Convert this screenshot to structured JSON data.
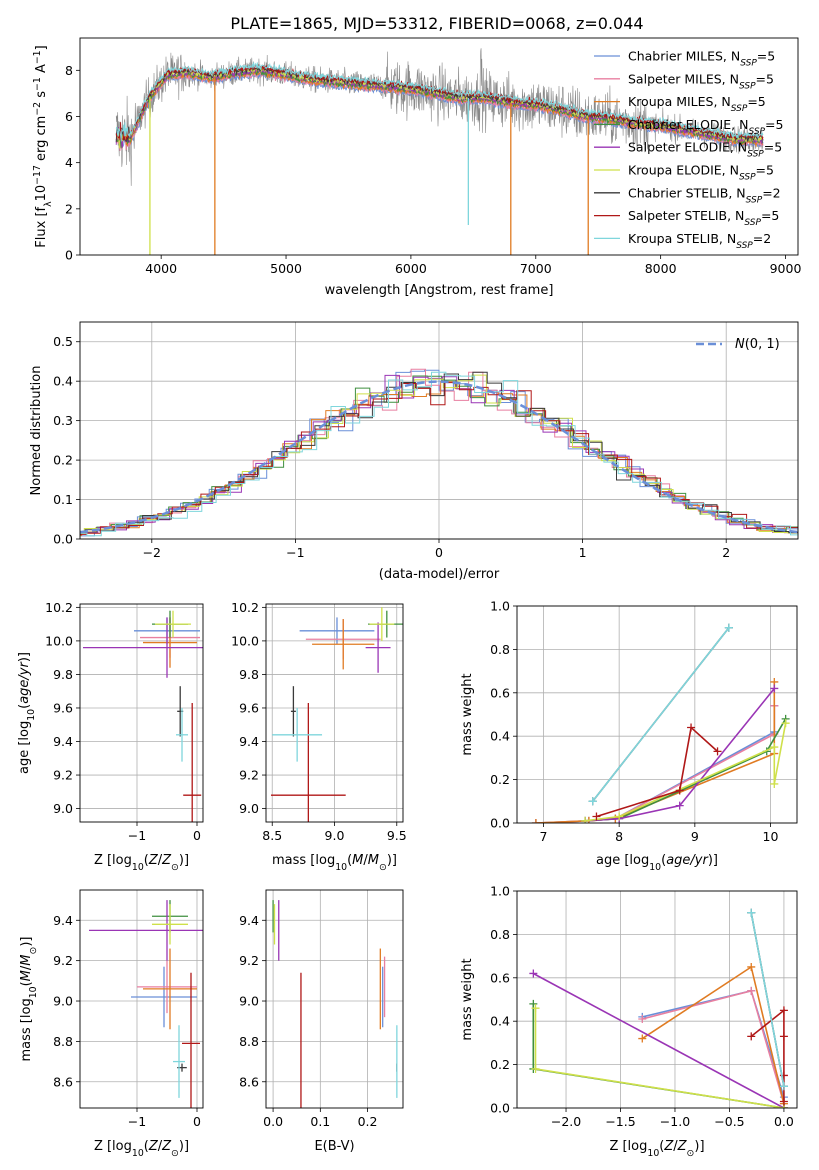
{
  "figure": {
    "title": "PLATE=1865, MJD=53312, FIBERID=0068, z=0.044"
  },
  "models": [
    {
      "name": "Chabrier MILES",
      "nssp": "5",
      "color": "#6a8fd8"
    },
    {
      "name": "Salpeter MILES",
      "nssp": "5",
      "color": "#e87fa0"
    },
    {
      "name": "Kroupa MILES",
      "nssp": "5",
      "color": "#e07b22"
    },
    {
      "name": "Chabrier ELODIE",
      "nssp": "5",
      "color": "#3f8f3f"
    },
    {
      "name": "Salpeter ELODIE",
      "nssp": "5",
      "color": "#9a35b5"
    },
    {
      "name": "Kroupa ELODIE",
      "nssp": "5",
      "color": "#cfe04a"
    },
    {
      "name": "Chabrier STELIB",
      "nssp": "2",
      "color": "#3a3a3a"
    },
    {
      "name": "Salpeter STELIB",
      "nssp": "5",
      "color": "#b01818"
    },
    {
      "name": "Kroupa STELIB",
      "nssp": "2",
      "color": "#7fd6dc"
    }
  ],
  "chart_data": [
    {
      "id": "spectrum",
      "type": "line",
      "xlabel": "wavelength [Angstrom, rest frame]",
      "ylabel": "Flux [f_λ 10^-17 erg cm^-2 s^-1 A^-1]",
      "xlim": [
        3350,
        9100
      ],
      "ylim": [
        0,
        9.4
      ],
      "xticks": [
        4000,
        5000,
        6000,
        7000,
        8000,
        9000
      ],
      "yticks": [
        0,
        2,
        4,
        6,
        8
      ],
      "observed_color": "#888888",
      "continuum": {
        "wavelength": [
          3650,
          3750,
          3900,
          4050,
          4200,
          4400,
          4600,
          4800,
          5000,
          5200,
          5400,
          5600,
          5800,
          6000,
          6200,
          6400,
          6600,
          6800,
          7000,
          7200,
          7400,
          7600,
          7800,
          8000,
          8200,
          8400,
          8600,
          8800
        ],
        "flux": [
          5.2,
          5.0,
          6.8,
          7.8,
          7.9,
          7.7,
          7.9,
          8.0,
          7.8,
          7.6,
          7.5,
          7.4,
          7.3,
          7.2,
          7.0,
          6.8,
          6.8,
          6.6,
          6.5,
          6.3,
          6.0,
          5.9,
          5.7,
          5.6,
          5.4,
          5.2,
          5.0,
          5.0
        ]
      },
      "drops": [
        {
          "model": "Kroupa ELODIE",
          "wavelength": 3910
        },
        {
          "model": "Kroupa MILES",
          "wavelength": 4430
        },
        {
          "model": "Kroupa STELIB",
          "wavelength": 6460
        },
        {
          "model": "Kroupa MILES",
          "wavelength": 6800
        },
        {
          "model": "Kroupa MILES",
          "wavelength": 7420
        }
      ]
    },
    {
      "id": "residuals",
      "type": "histogram",
      "xlabel": "(data-model)/error",
      "ylabel": "Normed distribution",
      "xlim": [
        -2.5,
        2.5
      ],
      "ylim": [
        0,
        0.55
      ],
      "xticks": [
        -2,
        -1,
        0,
        1,
        2
      ],
      "yticks": [
        0.0,
        0.1,
        0.2,
        0.3,
        0.4,
        0.5
      ],
      "bin_width": 0.1,
      "legend": "N(0,1)",
      "gaussian_color": "#6a8fd8"
    },
    {
      "id": "age_vs_Z",
      "type": "errorbar",
      "xlabel": "Z [log10(Z/Z⊙)]",
      "ylabel": "age  [log10(age/yr)]",
      "xlim": [
        -1.95,
        0.1
      ],
      "ylim": [
        8.92,
        10.22
      ],
      "xticks": [
        -1,
        0
      ],
      "yticks": [
        9.0,
        9.2,
        9.4,
        9.6,
        9.8,
        10.0,
        10.2
      ],
      "points": [
        {
          "x": -0.5,
          "y": 10.06,
          "xerr": 0.55,
          "yerr": 0.08
        },
        {
          "x": -0.45,
          "y": 10.02,
          "xerr": 0.5,
          "yerr": 0.12
        },
        {
          "x": -0.45,
          "y": 9.99,
          "xerr": 0.45,
          "yerr": 0.15
        },
        {
          "x": -0.45,
          "y": 10.1,
          "xerr": 0.3,
          "yerr": 0.08
        },
        {
          "x": -0.5,
          "y": 9.96,
          "xerr": 1.4,
          "yerr": 0.18
        },
        {
          "x": -0.4,
          "y": 10.1,
          "xerr": 0.3,
          "yerr": 0.08
        },
        {
          "x": -0.28,
          "y": 9.58,
          "xerr": 0.05,
          "yerr": 0.15
        },
        {
          "x": -0.08,
          "y": 9.08,
          "xerr": 0.15,
          "yerr": 0.55
        },
        {
          "x": -0.25,
          "y": 9.44,
          "xerr": 0.1,
          "yerr": 0.16
        }
      ]
    },
    {
      "id": "age_vs_mass",
      "type": "errorbar",
      "xlabel": "mass [log10(M/M⊙)]",
      "ylabel": "",
      "xlim": [
        8.45,
        9.55
      ],
      "ylim": [
        8.92,
        10.22
      ],
      "xticks": [
        8.5,
        9.0,
        9.5
      ],
      "yticks": [
        9.0,
        9.2,
        9.4,
        9.6,
        9.8,
        10.0,
        10.2
      ],
      "points": [
        {
          "x": 9.02,
          "y": 10.06,
          "xerr": 0.3,
          "yerr": 0.08
        },
        {
          "x": 9.07,
          "y": 10.01,
          "xerr": 0.3,
          "yerr": 0.12
        },
        {
          "x": 9.07,
          "y": 9.98,
          "xerr": 0.25,
          "yerr": 0.15
        },
        {
          "x": 9.42,
          "y": 10.1,
          "xerr": 0.15,
          "yerr": 0.08
        },
        {
          "x": 9.35,
          "y": 9.96,
          "xerr": 0.1,
          "yerr": 0.15
        },
        {
          "x": 9.38,
          "y": 10.1,
          "xerr": 0.1,
          "yerr": 0.1
        },
        {
          "x": 8.67,
          "y": 9.58,
          "xerr": 0.02,
          "yerr": 0.15
        },
        {
          "x": 8.79,
          "y": 9.08,
          "xerr": 0.3,
          "yerr": 0.55
        },
        {
          "x": 8.7,
          "y": 9.44,
          "xerr": 0.2,
          "yerr": 0.16
        }
      ]
    },
    {
      "id": "weight_vs_age",
      "type": "line",
      "xlabel": "age  [log10(age/yr)]",
      "ylabel": "mass weight",
      "xlim": [
        6.65,
        10.35
      ],
      "ylim": [
        0,
        1.0
      ],
      "xticks": [
        7,
        8,
        9,
        10
      ],
      "yticks": [
        0.0,
        0.2,
        0.4,
        0.6,
        0.8,
        1.0
      ],
      "series": [
        {
          "model": "Chabrier MILES",
          "x": [
            6.9,
            7.6,
            7.95,
            10.05,
            10.05
          ],
          "y": [
            0.0,
            0.01,
            0.02,
            0.42,
            0.54
          ]
        },
        {
          "model": "Salpeter MILES",
          "x": [
            6.9,
            7.6,
            7.95,
            10.05,
            10.05
          ],
          "y": [
            0.0,
            0.01,
            0.02,
            0.41,
            0.54
          ]
        },
        {
          "model": "Kroupa MILES",
          "x": [
            6.9,
            7.6,
            7.95,
            10.05,
            10.05
          ],
          "y": [
            0.0,
            0.01,
            0.02,
            0.32,
            0.65
          ]
        },
        {
          "model": "Chabrier ELODIE",
          "x": [
            7.55,
            8.0,
            9.95,
            10.2
          ],
          "y": [
            0.01,
            0.02,
            0.33,
            0.48
          ]
        },
        {
          "model": "Salpeter ELODIE",
          "x": [
            7.55,
            8.0,
            8.8,
            10.05
          ],
          "y": [
            0.01,
            0.02,
            0.08,
            0.62
          ]
        },
        {
          "model": "Kroupa ELODIE",
          "x": [
            7.55,
            8.0,
            10.05,
            10.05,
            10.2
          ],
          "y": [
            0.01,
            0.03,
            0.35,
            0.18,
            0.46
          ]
        },
        {
          "model": "Chabrier STELIB",
          "x": [
            7.65,
            9.45
          ],
          "y": [
            0.1,
            0.9
          ]
        },
        {
          "model": "Salpeter STELIB",
          "x": [
            7.7,
            8.8,
            8.95,
            9.3
          ],
          "y": [
            0.03,
            0.15,
            0.44,
            0.33
          ]
        },
        {
          "model": "Kroupa STELIB",
          "x": [
            7.65,
            9.45
          ],
          "y": [
            0.1,
            0.9
          ]
        }
      ]
    },
    {
      "id": "mass_vs_Z",
      "type": "errorbar",
      "xlabel": "Z [log10(Z/Z⊙)]",
      "ylabel": "mass [log10(M/M⊙)]",
      "xlim": [
        -1.95,
        0.1
      ],
      "ylim": [
        8.47,
        9.55
      ],
      "xticks": [
        -1,
        0
      ],
      "yticks": [
        8.6,
        8.8,
        9.0,
        9.2,
        9.4
      ],
      "points": [
        {
          "x": -0.55,
          "y": 9.02,
          "xerr": 0.55,
          "yerr": 0.15
        },
        {
          "x": -0.5,
          "y": 9.07,
          "xerr": 0.5,
          "yerr": 0.13
        },
        {
          "x": -0.45,
          "y": 9.06,
          "xerr": 0.45,
          "yerr": 0.2
        },
        {
          "x": -0.45,
          "y": 9.42,
          "xerr": 0.3,
          "yerr": 0.08
        },
        {
          "x": -0.5,
          "y": 9.35,
          "xerr": 1.3,
          "yerr": 0.15
        },
        {
          "x": -0.45,
          "y": 9.38,
          "xerr": 0.3,
          "yerr": 0.1
        },
        {
          "x": -0.25,
          "y": 8.67,
          "xerr": 0.08,
          "yerr": 0.02
        },
        {
          "x": -0.1,
          "y": 8.79,
          "xerr": 0.15,
          "yerr": 0.35
        },
        {
          "x": -0.3,
          "y": 8.7,
          "xerr": 0.1,
          "yerr": 0.18
        }
      ]
    },
    {
      "id": "mass_vs_ebv",
      "type": "errorbar",
      "xlabel": "E(B-V)",
      "ylabel": "",
      "xlim": [
        -0.015,
        0.275
      ],
      "ylim": [
        8.47,
        9.55
      ],
      "xticks": [
        0.0,
        0.1,
        0.2
      ],
      "yticks": [
        8.6,
        8.8,
        9.0,
        9.2,
        9.4
      ],
      "points": [
        {
          "x": 0.232,
          "y": 9.02,
          "xerr": 0,
          "yerr": 0.15
        },
        {
          "x": 0.236,
          "y": 9.07,
          "xerr": 0,
          "yerr": 0.15
        },
        {
          "x": 0.227,
          "y": 9.06,
          "xerr": 0,
          "yerr": 0.2
        },
        {
          "x": 0.0,
          "y": 9.42,
          "xerr": 0,
          "yerr": 0.08
        },
        {
          "x": 0.012,
          "y": 9.35,
          "xerr": 0,
          "yerr": 0.15
        },
        {
          "x": 0.003,
          "y": 9.38,
          "xerr": 0,
          "yerr": 0.1
        },
        {
          "x": 0.262,
          "y": 8.67,
          "xerr": 0,
          "yerr": 0.02
        },
        {
          "x": 0.059,
          "y": 8.79,
          "xerr": 0,
          "yerr": 0.35
        },
        {
          "x": 0.262,
          "y": 8.7,
          "xerr": 0,
          "yerr": 0.18
        }
      ]
    },
    {
      "id": "weight_vs_Z",
      "type": "line",
      "xlabel": "Z [log10(Z/Z⊙)]",
      "ylabel": "mass weight",
      "xlim": [
        -2.45,
        0.12
      ],
      "ylim": [
        0,
        1.0
      ],
      "xticks": [
        -2.0,
        -1.5,
        -1.0,
        -0.5,
        0.0
      ],
      "yticks": [
        0.0,
        0.2,
        0.4,
        0.6,
        0.8,
        1.0
      ],
      "series": [
        {
          "model": "Chabrier MILES",
          "x": [
            -1.3,
            -0.3,
            0.0,
            0.0
          ],
          "y": [
            0.42,
            0.54,
            0.05,
            0.0
          ]
        },
        {
          "model": "Salpeter MILES",
          "x": [
            -1.3,
            -0.3,
            0.0,
            0.0
          ],
          "y": [
            0.41,
            0.54,
            0.02,
            0.0
          ]
        },
        {
          "model": "Kroupa MILES",
          "x": [
            -1.3,
            -0.3,
            0.0,
            0.0
          ],
          "y": [
            0.32,
            0.65,
            0.02,
            0.0
          ]
        },
        {
          "model": "Chabrier ELODIE",
          "x": [
            -2.3,
            -2.3,
            0.0
          ],
          "y": [
            0.48,
            0.18,
            0.0
          ]
        },
        {
          "model": "Salpeter ELODIE",
          "x": [
            -2.3,
            0.0
          ],
          "y": [
            0.62,
            0.0
          ]
        },
        {
          "model": "Kroupa ELODIE",
          "x": [
            -2.28,
            -2.28,
            0.0
          ],
          "y": [
            0.46,
            0.18,
            0.0
          ]
        },
        {
          "model": "Chabrier STELIB",
          "x": [
            -0.3,
            0.0
          ],
          "y": [
            0.9,
            0.1
          ]
        },
        {
          "model": "Salpeter STELIB",
          "x": [
            -0.3,
            0.0,
            0.0,
            0.0,
            0.0
          ],
          "y": [
            0.33,
            0.45,
            0.33,
            0.15,
            0.03
          ]
        },
        {
          "model": "Kroupa STELIB",
          "x": [
            -0.3,
            0.0
          ],
          "y": [
            0.9,
            0.1
          ]
        }
      ]
    }
  ]
}
